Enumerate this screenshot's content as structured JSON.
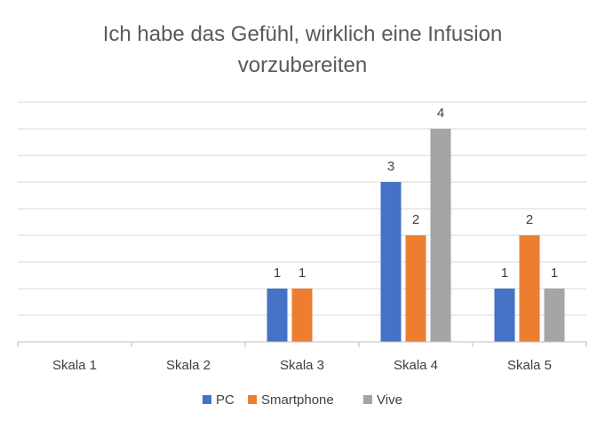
{
  "chart_data": {
    "type": "bar",
    "title_lines": [
      "Ich habe das Gefühl, wirklich eine Infusion",
      "vorzubereiten"
    ],
    "categories": [
      "Skala 1",
      "Skala 2",
      "Skala 3",
      "Skala 4",
      "Skala 5"
    ],
    "series": [
      {
        "name": "PC",
        "color": "#4472C4",
        "values": [
          0,
          0,
          1,
          3,
          1
        ]
      },
      {
        "name": "Smartphone",
        "color": "#ED7D31",
        "values": [
          0,
          0,
          1,
          2,
          2
        ]
      },
      {
        "name": "Vive",
        "color": "#A5A5A5",
        "values": [
          0,
          0,
          0,
          4,
          1
        ]
      }
    ],
    "ylim": [
      0,
      4.5
    ],
    "grid": true,
    "legend": "bottom"
  }
}
